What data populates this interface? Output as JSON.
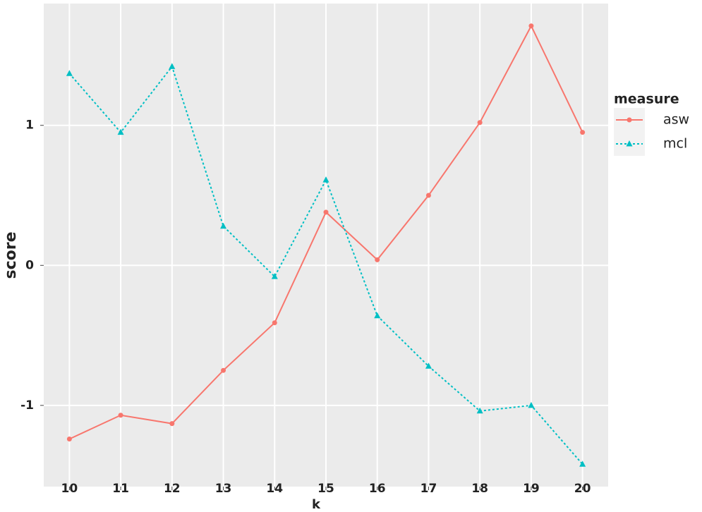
{
  "chart_data": {
    "type": "line",
    "x_label": "k",
    "y_label": "score",
    "x": [
      10,
      11,
      12,
      13,
      14,
      15,
      16,
      17,
      18,
      19,
      20
    ],
    "xlim": [
      9.5,
      20.5
    ],
    "xticks": [
      10,
      11,
      12,
      13,
      14,
      15,
      16,
      17,
      18,
      19,
      20
    ],
    "ylim": [
      -1.58,
      1.87
    ],
    "yticks": [
      -1,
      0,
      1
    ],
    "grid": true,
    "legend_title": "measure",
    "legend_position": "right",
    "series": [
      {
        "name": "asw",
        "color": "#F8766D",
        "linestyle": "solid",
        "marker": "circle",
        "values": [
          -1.24,
          -1.07,
          -1.13,
          -0.75,
          -0.41,
          0.38,
          0.04,
          0.5,
          1.02,
          1.71,
          0.95
        ]
      },
      {
        "name": "mcl",
        "color": "#00BFC4",
        "linestyle": "dotted",
        "marker": "triangle",
        "values": [
          1.37,
          0.95,
          1.42,
          0.28,
          -0.08,
          0.61,
          -0.36,
          -0.72,
          -1.04,
          -1.0,
          -1.42
        ]
      }
    ]
  }
}
